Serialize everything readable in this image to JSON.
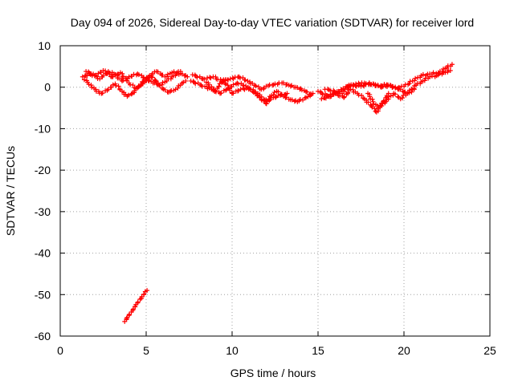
{
  "chart_data": {
    "type": "scatter",
    "title": "Day 094 of 2026, Sidereal Day-to-day VTEC variation (SDTVAR) for receiver lord",
    "xlabel": "GPS time / hours",
    "ylabel": "SDTVAR / TECUs",
    "xlim": [
      0,
      25
    ],
    "ylim": [
      -60,
      10
    ],
    "xticks": [
      0,
      5,
      10,
      15,
      20,
      25
    ],
    "yticks": [
      10,
      0,
      -10,
      -20,
      -30,
      -40,
      -50,
      -60
    ],
    "grid": true,
    "marker": "+",
    "color": "#ff0000",
    "series": [
      {
        "name": "SDTVAR",
        "segments": [
          [
            [
              1.3,
              2.5
            ],
            [
              1.8,
              3.2
            ],
            [
              2.3,
              2.0
            ],
            [
              2.8,
              3.8
            ],
            [
              3.2,
              3.0
            ],
            [
              3.6,
              1.5
            ],
            [
              4.0,
              2.5
            ],
            [
              4.5,
              3.2
            ],
            [
              5.0,
              2.0
            ],
            [
              5.4,
              1.0
            ],
            [
              5.8,
              0.5
            ],
            [
              6.2,
              1.5
            ],
            [
              6.6,
              2.8
            ],
            [
              7.0,
              3.3
            ],
            [
              7.4,
              2.5
            ]
          ],
          [
            [
              1.4,
              1.8
            ],
            [
              1.8,
              0.5
            ],
            [
              2.1,
              -1.0
            ],
            [
              2.4,
              -1.5
            ],
            [
              2.8,
              -0.5
            ],
            [
              3.2,
              0.8
            ],
            [
              3.6,
              -1.0
            ],
            [
              3.9,
              -2.2
            ],
            [
              4.2,
              -1.5
            ],
            [
              4.5,
              -0.2
            ],
            [
              4.9,
              1.5
            ],
            [
              5.3,
              2.5
            ],
            [
              5.7,
              1.0
            ],
            [
              6.0,
              -0.5
            ],
            [
              6.3,
              -1.2
            ],
            [
              6.6,
              -0.8
            ],
            [
              7.0,
              0.5
            ],
            [
              7.3,
              1.5
            ]
          ],
          [
            [
              1.5,
              3.8
            ],
            [
              2.0,
              2.8
            ],
            [
              2.5,
              4.0
            ],
            [
              3.0,
              2.5
            ],
            [
              3.5,
              3.5
            ],
            [
              4.0,
              1.0
            ],
            [
              4.4,
              -0.3
            ],
            [
              4.8,
              0.8
            ],
            [
              5.2,
              2.8
            ],
            [
              5.6,
              3.8
            ],
            [
              6.1,
              2.5
            ],
            [
              6.5,
              3.5
            ],
            [
              7.0,
              3.8
            ]
          ],
          [
            [
              7.6,
              1.5
            ],
            [
              8.2,
              0.5
            ],
            [
              8.8,
              -0.5
            ],
            [
              9.3,
              -1.5
            ],
            [
              9.8,
              -0.2
            ],
            [
              10.3,
              1.0
            ],
            [
              10.8,
              0.3
            ],
            [
              11.2,
              -1.0
            ],
            [
              11.6,
              -2.5
            ],
            [
              12.0,
              -4.0
            ],
            [
              12.3,
              -2.0
            ],
            [
              12.6,
              -1.0
            ],
            [
              13.0,
              -2.2
            ],
            [
              13.4,
              -3.0
            ],
            [
              13.8,
              -3.5
            ],
            [
              14.3,
              -2.5
            ],
            [
              14.7,
              -1.5
            ]
          ],
          [
            [
              7.7,
              3.0
            ],
            [
              8.3,
              2.0
            ],
            [
              8.9,
              2.5
            ],
            [
              9.4,
              1.5
            ],
            [
              9.9,
              2.0
            ],
            [
              10.4,
              2.5
            ],
            [
              10.9,
              1.5
            ],
            [
              11.3,
              0.5
            ],
            [
              11.7,
              -0.5
            ],
            [
              12.1,
              0.3
            ],
            [
              12.5,
              0.8
            ],
            [
              12.9,
              1.0
            ],
            [
              13.3,
              0.5
            ],
            [
              13.7,
              0.0
            ],
            [
              14.2,
              -0.8
            ],
            [
              14.6,
              -1.8
            ]
          ],
          [
            [
              8.5,
              1.2
            ],
            [
              9.0,
              -1.0
            ],
            [
              9.5,
              1.8
            ],
            [
              10.0,
              -1.5
            ],
            [
              10.5,
              -0.5
            ],
            [
              11.0,
              -0.3
            ],
            [
              11.5,
              -1.5
            ],
            [
              11.9,
              -3.2
            ],
            [
              12.4,
              -2.5
            ],
            [
              12.8,
              -2.0
            ],
            [
              13.2,
              -1.5
            ]
          ],
          [
            [
              15.0,
              -1.0
            ],
            [
              15.5,
              -2.0
            ],
            [
              16.0,
              -1.5
            ],
            [
              16.5,
              -2.5
            ],
            [
              16.9,
              -0.5
            ],
            [
              17.3,
              -1.5
            ],
            [
              17.7,
              -2.8
            ],
            [
              18.1,
              -4.5
            ],
            [
              18.4,
              -6.0
            ],
            [
              18.7,
              -4.5
            ],
            [
              19.0,
              -3.0
            ],
            [
              19.4,
              -1.5
            ],
            [
              19.8,
              -2.8
            ],
            [
              20.2,
              -1.5
            ],
            [
              20.6,
              -0.5
            ]
          ],
          [
            [
              15.2,
              -2.8
            ],
            [
              15.7,
              -2.3
            ],
            [
              16.2,
              -1.0
            ],
            [
              16.7,
              0.2
            ],
            [
              17.2,
              0.8
            ],
            [
              17.7,
              1.0
            ],
            [
              18.2,
              0.8
            ],
            [
              18.7,
              0.0
            ],
            [
              19.2,
              0.5
            ],
            [
              19.7,
              -0.5
            ],
            [
              20.2,
              -1.5
            ],
            [
              20.7,
              0.5
            ],
            [
              21.1,
              1.5
            ],
            [
              21.5,
              2.5
            ],
            [
              21.9,
              2.8
            ],
            [
              22.3,
              3.5
            ],
            [
              22.7,
              4.0
            ]
          ],
          [
            [
              15.4,
              -0.5
            ],
            [
              15.9,
              -0.8
            ],
            [
              16.4,
              -1.5
            ],
            [
              16.8,
              0.5
            ],
            [
              17.5,
              0.2
            ],
            [
              18.0,
              0.8
            ],
            [
              18.5,
              0.3
            ],
            [
              19.0,
              0.6
            ],
            [
              19.5,
              -0.2
            ],
            [
              20.0,
              0.2
            ],
            [
              20.5,
              1.5
            ],
            [
              21.0,
              2.8
            ],
            [
              21.5,
              3.2
            ],
            [
              22.0,
              3.5
            ],
            [
              22.4,
              4.5
            ],
            [
              22.8,
              5.5
            ]
          ],
          [
            [
              17.9,
              -1.5
            ],
            [
              18.2,
              -3.5
            ],
            [
              18.5,
              -5.0
            ],
            [
              18.8,
              -3.5
            ],
            [
              19.1,
              -1.5
            ]
          ],
          [
            [
              3.75,
              -56.5
            ],
            [
              4.0,
              -55.0
            ],
            [
              4.25,
              -53.5
            ],
            [
              4.5,
              -52.0
            ],
            [
              4.75,
              -50.5
            ],
            [
              5.05,
              -49.0
            ]
          ]
        ]
      }
    ]
  }
}
